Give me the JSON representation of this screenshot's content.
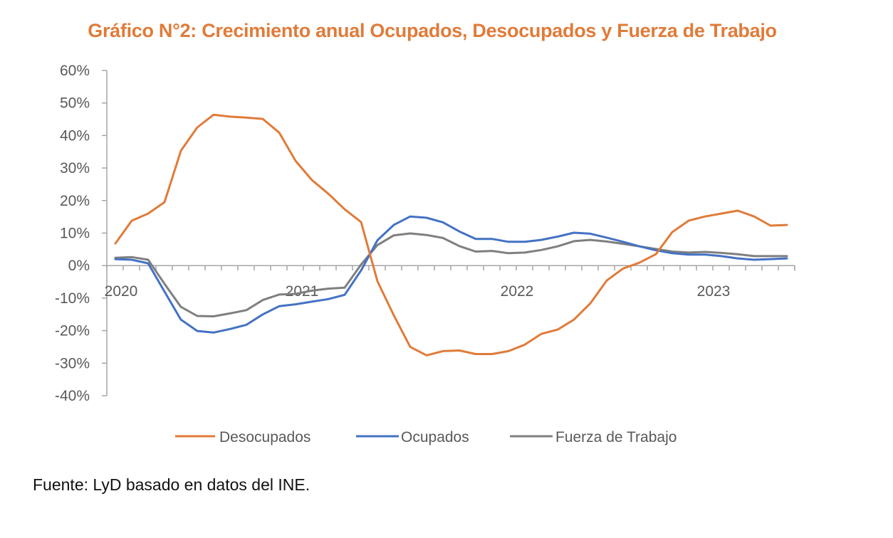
{
  "chart_data": {
    "type": "line",
    "title": "Gráfico N°2: Crecimiento anual Ocupados, Desocupados y Fuerza de Trabajo",
    "xlabel": "",
    "ylabel": "",
    "ylim": [
      -0.4,
      0.6
    ],
    "yticks": [
      0.6,
      0.5,
      0.4,
      0.3,
      0.2,
      0.1,
      0.0,
      -0.1,
      -0.2,
      -0.3,
      -0.4
    ],
    "ytick_labels": [
      "60%",
      "50%",
      "40%",
      "30%",
      "20%",
      "10%",
      "0%",
      "-10%",
      "-20%",
      "-30%",
      "-40%"
    ],
    "x_period_count": 42,
    "x_year_labels": [
      {
        "label": "2020",
        "index": 0
      },
      {
        "label": "2021",
        "index": 12
      },
      {
        "label": "2022",
        "index": 24
      },
      {
        "label": "2023",
        "index": 36
      }
    ],
    "grid": false,
    "legend_position": "bottom",
    "series": [
      {
        "name": "Desocupados",
        "color": "#E07B39",
        "values": [
          0.068,
          0.138,
          0.16,
          0.195,
          0.353,
          0.425,
          0.464,
          0.458,
          0.455,
          0.451,
          0.409,
          0.322,
          0.263,
          0.221,
          0.173,
          0.134,
          -0.048,
          -0.153,
          -0.25,
          -0.276,
          -0.263,
          -0.261,
          -0.272,
          -0.272,
          -0.263,
          -0.243,
          -0.21,
          -0.197,
          -0.166,
          -0.116,
          -0.046,
          -0.009,
          0.009,
          0.035,
          0.103,
          0.138,
          0.151,
          0.16,
          0.169,
          0.151,
          0.123,
          0.125
        ]
      },
      {
        "name": "Ocupados",
        "color": "#4472C4",
        "values": [
          0.02,
          0.018,
          0.007,
          -0.08,
          -0.166,
          -0.201,
          -0.206,
          -0.195,
          -0.182,
          -0.15,
          -0.125,
          -0.119,
          -0.111,
          -0.103,
          -0.09,
          -0.015,
          0.078,
          0.125,
          0.151,
          0.147,
          0.133,
          0.105,
          0.082,
          0.082,
          0.073,
          0.073,
          0.079,
          0.089,
          0.101,
          0.098,
          0.086,
          0.073,
          0.059,
          0.047,
          0.038,
          0.034,
          0.034,
          0.029,
          0.022,
          0.018,
          0.02,
          0.022
        ]
      },
      {
        "name": "Fuerza de Trabajo",
        "color": "#7F7F7F",
        "values": [
          0.024,
          0.026,
          0.018,
          -0.056,
          -0.127,
          -0.155,
          -0.156,
          -0.147,
          -0.137,
          -0.106,
          -0.089,
          -0.087,
          -0.077,
          -0.071,
          -0.068,
          0.003,
          0.063,
          0.093,
          0.099,
          0.094,
          0.085,
          0.06,
          0.043,
          0.045,
          0.038,
          0.04,
          0.048,
          0.059,
          0.075,
          0.079,
          0.074,
          0.067,
          0.059,
          0.051,
          0.043,
          0.04,
          0.042,
          0.039,
          0.035,
          0.029,
          0.029,
          0.029
        ]
      }
    ]
  },
  "source_note": "Fuente: LyD basado en datos del INE."
}
